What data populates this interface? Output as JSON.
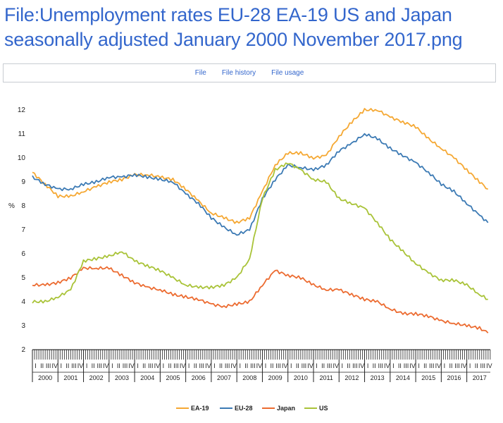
{
  "page": {
    "title": "File:Unemployment rates EU-28 EA-19 US and Japan seasonally adjusted January 2000 November 2017.png"
  },
  "tabs": [
    {
      "label": "File"
    },
    {
      "label": "File history"
    },
    {
      "label": "File usage"
    }
  ],
  "colors": {
    "ea19": "#f5a833",
    "eu28": "#3c7ab4",
    "japan": "#ec6b30",
    "us": "#a9c338"
  },
  "chart_data": {
    "type": "line",
    "title": "",
    "xlabel": "",
    "ylabel": "%",
    "ylim": [
      2,
      12
    ],
    "yticks": [
      "2",
      "3",
      "4",
      "5",
      "6",
      "7",
      "8",
      "9",
      "10",
      "11",
      "12"
    ],
    "xlim": [
      2000.0,
      2017.92
    ],
    "years": [
      "2000",
      "2001",
      "2002",
      "2003",
      "2004",
      "2005",
      "2006",
      "2007",
      "2008",
      "2009",
      "2010",
      "2011",
      "2012",
      "2013",
      "2014",
      "2015",
      "2016",
      "2017"
    ],
    "quarter_labels": [
      "I",
      "II",
      "III",
      "IV"
    ],
    "grid": false,
    "legend_position": "bottom-center",
    "series": [
      {
        "name": "EA-19",
        "color_key": "ea19",
        "x": [
          2000.0,
          2000.5,
          2001.0,
          2001.5,
          2002.0,
          2002.5,
          2003.0,
          2003.5,
          2004.0,
          2004.5,
          2005.0,
          2005.5,
          2006.0,
          2006.5,
          2007.0,
          2007.5,
          2008.0,
          2008.5,
          2009.0,
          2009.5,
          2010.0,
          2010.5,
          2011.0,
          2011.5,
          2012.0,
          2012.5,
          2013.0,
          2013.5,
          2014.0,
          2014.5,
          2015.0,
          2015.5,
          2016.0,
          2016.5,
          2017.0,
          2017.5,
          2017.83
        ],
        "values": [
          9.4,
          8.9,
          8.4,
          8.4,
          8.6,
          8.8,
          9.0,
          9.1,
          9.3,
          9.3,
          9.2,
          9.1,
          8.7,
          8.2,
          7.7,
          7.5,
          7.3,
          7.5,
          8.6,
          9.7,
          10.2,
          10.2,
          10.0,
          10.1,
          10.9,
          11.5,
          12.0,
          12.0,
          11.7,
          11.5,
          11.3,
          10.8,
          10.4,
          10.0,
          9.5,
          9.0,
          8.7
        ]
      },
      {
        "name": "EU-28",
        "color_key": "eu28",
        "x": [
          2000.0,
          2000.5,
          2001.0,
          2001.5,
          2002.0,
          2002.5,
          2003.0,
          2003.5,
          2004.0,
          2004.5,
          2005.0,
          2005.5,
          2006.0,
          2006.5,
          2007.0,
          2007.5,
          2008.0,
          2008.5,
          2009.0,
          2009.5,
          2010.0,
          2010.5,
          2011.0,
          2011.5,
          2012.0,
          2012.5,
          2013.0,
          2013.5,
          2014.0,
          2014.5,
          2015.0,
          2015.5,
          2016.0,
          2016.5,
          2017.0,
          2017.5,
          2017.83
        ],
        "values": [
          9.2,
          8.9,
          8.7,
          8.7,
          8.9,
          9.0,
          9.2,
          9.2,
          9.3,
          9.2,
          9.1,
          9.0,
          8.5,
          8.1,
          7.5,
          7.1,
          6.8,
          7.0,
          8.3,
          9.1,
          9.7,
          9.6,
          9.5,
          9.7,
          10.3,
          10.6,
          11.0,
          10.8,
          10.4,
          10.1,
          9.8,
          9.4,
          8.9,
          8.6,
          8.1,
          7.6,
          7.3
        ]
      },
      {
        "name": "Japan",
        "color_key": "japan",
        "x": [
          2000.0,
          2000.5,
          2001.0,
          2001.5,
          2002.0,
          2002.5,
          2003.0,
          2003.5,
          2004.0,
          2004.5,
          2005.0,
          2005.5,
          2006.0,
          2006.5,
          2007.0,
          2007.5,
          2008.0,
          2008.5,
          2009.0,
          2009.5,
          2010.0,
          2010.5,
          2011.0,
          2011.5,
          2012.0,
          2012.5,
          2013.0,
          2013.5,
          2014.0,
          2014.5,
          2015.0,
          2015.5,
          2016.0,
          2016.5,
          2017.0,
          2017.5,
          2017.83
        ],
        "values": [
          4.7,
          4.7,
          4.8,
          5.0,
          5.4,
          5.4,
          5.4,
          5.1,
          4.8,
          4.6,
          4.5,
          4.3,
          4.2,
          4.1,
          3.9,
          3.8,
          3.9,
          4.0,
          4.7,
          5.3,
          5.1,
          5.0,
          4.7,
          4.5,
          4.5,
          4.3,
          4.1,
          4.0,
          3.7,
          3.5,
          3.5,
          3.4,
          3.2,
          3.1,
          3.0,
          2.9,
          2.7
        ]
      },
      {
        "name": "US",
        "color_key": "us",
        "x": [
          2000.0,
          2000.5,
          2001.0,
          2001.5,
          2002.0,
          2002.5,
          2003.0,
          2003.5,
          2004.0,
          2004.5,
          2005.0,
          2005.5,
          2006.0,
          2006.5,
          2007.0,
          2007.5,
          2008.0,
          2008.5,
          2009.0,
          2009.5,
          2010.0,
          2010.5,
          2011.0,
          2011.5,
          2012.0,
          2012.5,
          2013.0,
          2013.5,
          2014.0,
          2014.5,
          2015.0,
          2015.5,
          2016.0,
          2016.5,
          2017.0,
          2017.5,
          2017.83
        ],
        "values": [
          4.0,
          4.0,
          4.2,
          4.5,
          5.7,
          5.8,
          5.9,
          6.1,
          5.7,
          5.5,
          5.3,
          5.0,
          4.7,
          4.6,
          4.6,
          4.7,
          5.0,
          5.8,
          8.3,
          9.5,
          9.8,
          9.5,
          9.1,
          9.0,
          8.3,
          8.1,
          7.9,
          7.3,
          6.6,
          6.1,
          5.6,
          5.2,
          4.9,
          4.9,
          4.7,
          4.3,
          4.1
        ]
      }
    ]
  }
}
